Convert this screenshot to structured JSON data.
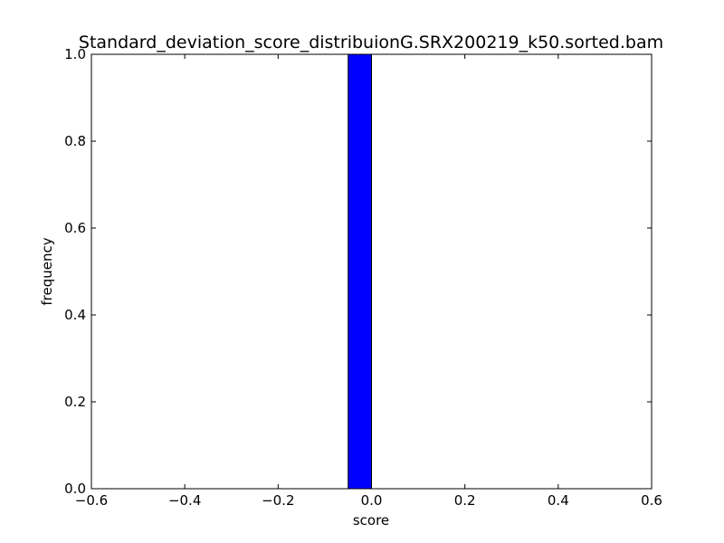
{
  "chart_data": {
    "type": "bar",
    "title": "Standard_deviation_score_distribuionG.SRX200219_k50.sorted.bam",
    "xlabel": "score",
    "ylabel": "frequency",
    "xlim": [
      -0.6,
      0.6
    ],
    "ylim": [
      0.0,
      1.0
    ],
    "xticks": [
      "−0.6",
      "−0.4",
      "−0.2",
      "0.0",
      "0.2",
      "0.4",
      "0.6"
    ],
    "yticks": [
      "0.0",
      "0.2",
      "0.4",
      "0.6",
      "0.8",
      "1.0"
    ],
    "bin_edges": [
      -0.5,
      -0.45,
      -0.4,
      -0.35,
      -0.3,
      -0.25,
      -0.2,
      -0.15,
      -0.1,
      -0.05,
      0.0,
      0.05,
      0.1,
      0.15,
      0.2,
      0.25,
      0.3,
      0.35,
      0.4,
      0.45,
      0.5
    ],
    "values": [
      0,
      0,
      0,
      0,
      0,
      0,
      0,
      0,
      0,
      1.0,
      0,
      0,
      0,
      0,
      0,
      0,
      0,
      0,
      0,
      0
    ],
    "bar_color": "#0000ff",
    "grid": false
  }
}
